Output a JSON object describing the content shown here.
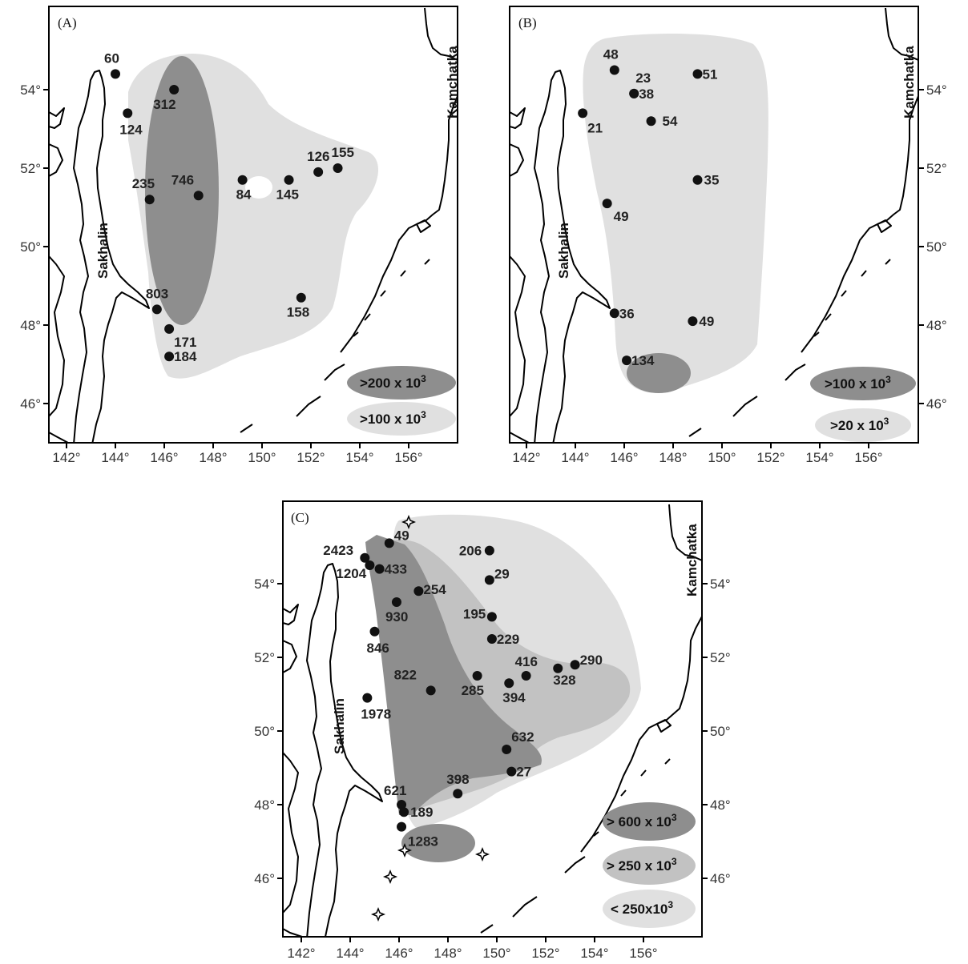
{
  "panels": [
    {
      "key": "A",
      "label": "(A)",
      "x_ticks": [
        "142°",
        "144°",
        "146°",
        "148°",
        "150°",
        "152°",
        "154°",
        "156°"
      ],
      "y_ticks": [
        "46°",
        "48°",
        "50°",
        "52°",
        "54°"
      ],
      "y_axis_side": "left",
      "region_labels": {
        "sakhalin": "Sakhalin",
        "kamchatka": "Kamchatka"
      },
      "legend": [
        {
          "text": ">200 x 10",
          "sup": "3",
          "color": "#8e8e8e"
        },
        {
          "text": ">100 x 10",
          "sup": "3",
          "color": "#e0e0e0"
        }
      ],
      "points": [
        {
          "label": "60",
          "lon": 144.0,
          "lat": 54.4
        },
        {
          "label": "312",
          "lon": 146.4,
          "lat": 54.0
        },
        {
          "label": "124",
          "lon": 144.5,
          "lat": 53.4
        },
        {
          "label": "126",
          "lon": 152.3,
          "lat": 51.9
        },
        {
          "label": "155",
          "lon": 153.1,
          "lat": 52.0
        },
        {
          "label": "235",
          "lon": 145.4,
          "lat": 51.2
        },
        {
          "label": "746",
          "lon": 147.4,
          "lat": 51.3
        },
        {
          "label": "84",
          "lon": 149.2,
          "lat": 51.7
        },
        {
          "label": "145",
          "lon": 151.1,
          "lat": 51.7
        },
        {
          "label": "803",
          "lon": 145.7,
          "lat": 48.4
        },
        {
          "label": "158",
          "lon": 151.6,
          "lat": 48.7
        },
        {
          "label": "171",
          "lon": 146.2,
          "lat": 47.9
        },
        {
          "label": "184",
          "lon": 146.2,
          "lat": 47.2
        }
      ]
    },
    {
      "key": "B",
      "label": "(B)",
      "x_ticks": [
        "142°",
        "144°",
        "146°",
        "148°",
        "150°",
        "152°",
        "154°",
        "156°"
      ],
      "y_ticks": [
        "46°",
        "48°",
        "50°",
        "52°",
        "54°"
      ],
      "y_axis_side": "right",
      "region_labels": {
        "sakhalin": "Sakhalin",
        "kamchatka": "Kamchatka"
      },
      "legend": [
        {
          "text": ">100 x 10",
          "sup": "3",
          "color": "#8e8e8e"
        },
        {
          "text": ">20 x 10",
          "sup": "3",
          "color": "#e0e0e0"
        }
      ],
      "points": [
        {
          "label": "48",
          "lon": 145.6,
          "lat": 54.5
        },
        {
          "label": "23",
          "lon": 146.4,
          "lat": 53.9
        },
        {
          "label": "38",
          "lon": 146.4,
          "lat": 53.9
        },
        {
          "label": "51",
          "lon": 149.0,
          "lat": 54.4
        },
        {
          "label": "21",
          "lon": 144.3,
          "lat": 53.4
        },
        {
          "label": "54",
          "lon": 147.1,
          "lat": 53.2
        },
        {
          "label": "35",
          "lon": 149.0,
          "lat": 51.7
        },
        {
          "label": "49",
          "lon": 145.3,
          "lat": 51.1
        },
        {
          "label": "36",
          "lon": 145.6,
          "lat": 48.3
        },
        {
          "label": "49",
          "lon": 148.8,
          "lat": 48.1
        },
        {
          "label": "134",
          "lon": 146.1,
          "lat": 47.1
        }
      ]
    },
    {
      "key": "C",
      "label": "(C)",
      "x_ticks": [
        "142°",
        "144°",
        "146°",
        "148°",
        "150°",
        "152°",
        "154°",
        "156°"
      ],
      "y_ticks": [
        "46°",
        "48°",
        "50°",
        "52°",
        "54°"
      ],
      "y_axis_side": "both",
      "region_labels": {
        "sakhalin": "Sakhalin",
        "kamchatka": "Kamchatka"
      },
      "legend": [
        {
          "text": "> 600 x 10",
          "sup": "3",
          "color": "#8e8e8e"
        },
        {
          "text": "> 250 x 10",
          "sup": "3",
          "color": "#c2c2c2"
        },
        {
          "text": "< 250x10",
          "sup": "3",
          "color": "#e0e0e0"
        }
      ],
      "points": [
        {
          "label": "49",
          "lon": 145.6,
          "lat": 55.1
        },
        {
          "label": "2423",
          "lon": 144.6,
          "lat": 54.7
        },
        {
          "label": "433",
          "lon": 145.2,
          "lat": 54.4
        },
        {
          "label": "1204",
          "lon": 144.8,
          "lat": 54.5
        },
        {
          "label": "206",
          "lon": 149.7,
          "lat": 54.9
        },
        {
          "label": "29",
          "lon": 149.7,
          "lat": 54.1
        },
        {
          "label": "254",
          "lon": 146.8,
          "lat": 53.8
        },
        {
          "label": "930",
          "lon": 145.9,
          "lat": 53.5
        },
        {
          "label": "195",
          "lon": 149.8,
          "lat": 53.1
        },
        {
          "label": "846",
          "lon": 145.0,
          "lat": 52.7
        },
        {
          "label": "229",
          "lon": 149.8,
          "lat": 52.5
        },
        {
          "label": "416",
          "lon": 151.2,
          "lat": 51.5
        },
        {
          "label": "290",
          "lon": 153.2,
          "lat": 51.8
        },
        {
          "label": "328",
          "lon": 152.5,
          "lat": 51.7
        },
        {
          "label": "822",
          "lon": 147.3,
          "lat": 51.1
        },
        {
          "label": "285",
          "lon": 149.2,
          "lat": 51.5
        },
        {
          "label": "394",
          "lon": 150.5,
          "lat": 51.3
        },
        {
          "label": "1978",
          "lon": 144.7,
          "lat": 50.9
        },
        {
          "label": "632",
          "lon": 150.4,
          "lat": 49.5
        },
        {
          "label": "27",
          "lon": 150.6,
          "lat": 48.9
        },
        {
          "label": "398",
          "lon": 148.4,
          "lat": 48.3
        },
        {
          "label": "621",
          "lon": 146.1,
          "lat": 48.0
        },
        {
          "label": "189",
          "lon": 146.2,
          "lat": 47.8
        },
        {
          "label": "1283",
          "lon": 146.1,
          "lat": 47.4
        }
      ]
    }
  ]
}
